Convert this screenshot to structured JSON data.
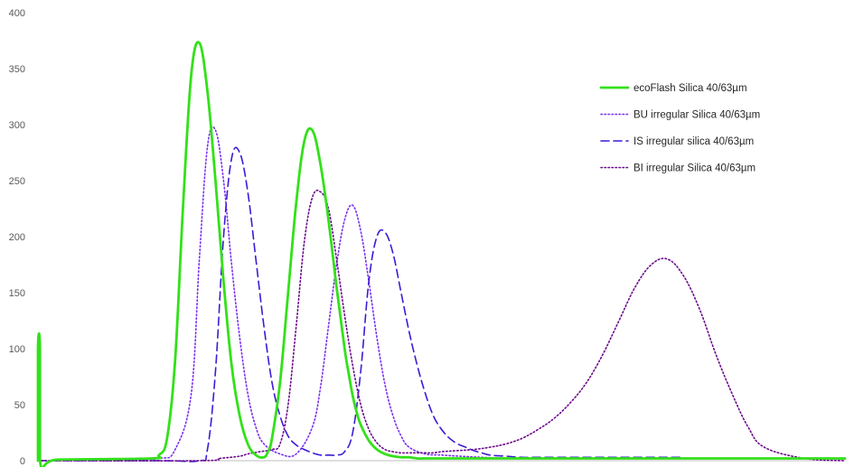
{
  "chart_data": {
    "type": "line",
    "title": "",
    "xlabel": "",
    "ylabel": "",
    "ylim": [
      0,
      400
    ],
    "yticks": [
      0,
      50,
      100,
      150,
      200,
      250,
      300,
      350,
      400
    ],
    "grid": false,
    "legend_position": "right",
    "series": [
      {
        "name": "ecoFlash Silica 40/63µm",
        "style": "solid",
        "color": "#33e01a",
        "x": [
          0,
          0,
          0.5,
          0.5,
          5,
          28,
          30,
          32,
          34,
          36,
          38,
          40,
          42,
          44,
          46,
          48,
          50,
          52,
          54,
          56,
          57,
          58,
          60,
          62,
          64,
          66,
          68,
          70,
          72,
          74,
          76,
          77,
          78,
          79,
          80,
          82,
          84,
          86,
          88,
          90,
          92,
          94,
          96,
          98,
          100,
          104,
          108,
          112,
          120,
          200
        ],
        "y": [
          0,
          100,
          100,
          0,
          1,
          2,
          5,
          20,
          90,
          230,
          345,
          373,
          330,
          250,
          160,
          85,
          40,
          15,
          5,
          3,
          8,
          20,
          70,
          150,
          230,
          285,
          295,
          265,
          215,
          155,
          100,
          78,
          58,
          43,
          32,
          18,
          10,
          6,
          4,
          3,
          3,
          2,
          2,
          2,
          2,
          2,
          2,
          2,
          2,
          2
        ]
      },
      {
        "name": "BU irregular Silica 40/63µm",
        "style": "dotted",
        "color": "#7b2ff0",
        "x": [
          0,
          20,
          30,
          34,
          38,
          40,
          42,
          44,
          46,
          48,
          50,
          52,
          54,
          56,
          60,
          64,
          68,
          70,
          72,
          74,
          76,
          78,
          80,
          82,
          84,
          86,
          88,
          90,
          92,
          96,
          100,
          110,
          120,
          130,
          140,
          150,
          160
        ],
        "y": [
          0,
          1,
          2,
          10,
          60,
          180,
          280,
          295,
          250,
          175,
          110,
          60,
          30,
          15,
          6,
          6,
          30,
          65,
          120,
          175,
          215,
          228,
          205,
          160,
          110,
          68,
          40,
          22,
          12,
          6,
          5,
          3,
          2,
          2,
          2,
          2,
          2
        ]
      },
      {
        "name": "IS irregular silica 40/63µm",
        "style": "dashed",
        "color": "#3d1ad6",
        "x": [
          0,
          30,
          40,
          42,
          44,
          46,
          48,
          50,
          52,
          54,
          56,
          58,
          60,
          62,
          64,
          66,
          68,
          70,
          72,
          74,
          76,
          78,
          80,
          82,
          84,
          86,
          88,
          90,
          92,
          94,
          96,
          98,
          100,
          102,
          104,
          106,
          108,
          110,
          112,
          116,
          120,
          126,
          140,
          160
        ],
        "y": [
          0,
          0,
          0,
          10,
          80,
          200,
          270,
          275,
          240,
          180,
          120,
          70,
          40,
          22,
          14,
          10,
          7,
          5,
          5,
          5,
          8,
          25,
          80,
          160,
          200,
          204,
          185,
          150,
          115,
          85,
          60,
          40,
          28,
          20,
          15,
          12,
          9,
          7,
          5,
          4,
          3,
          3,
          3,
          3
        ]
      },
      {
        "name": "BI irregular Silica 40/63µm",
        "style": "dotted",
        "color": "#6b0a8c",
        "x": [
          0,
          40,
          45,
          50,
          52,
          55,
          58,
          60,
          62,
          64,
          66,
          68,
          70,
          72,
          74,
          76,
          78,
          80,
          82,
          84,
          86,
          88,
          90,
          92,
          94,
          96,
          98,
          100,
          104,
          108,
          112,
          116,
          120,
          124,
          128,
          132,
          136,
          140,
          144,
          148,
          152,
          156,
          160,
          164,
          168,
          172,
          176,
          180,
          190,
          200
        ],
        "y": [
          0,
          0,
          2,
          4,
          6,
          8,
          10,
          15,
          50,
          120,
          195,
          235,
          240,
          225,
          180,
          130,
          85,
          50,
          28,
          16,
          10,
          8,
          7,
          7,
          7,
          7,
          7,
          8,
          9,
          10,
          12,
          15,
          20,
          28,
          38,
          52,
          70,
          95,
          125,
          155,
          175,
          180,
          165,
          135,
          95,
          60,
          30,
          12,
          2,
          0
        ]
      }
    ]
  }
}
